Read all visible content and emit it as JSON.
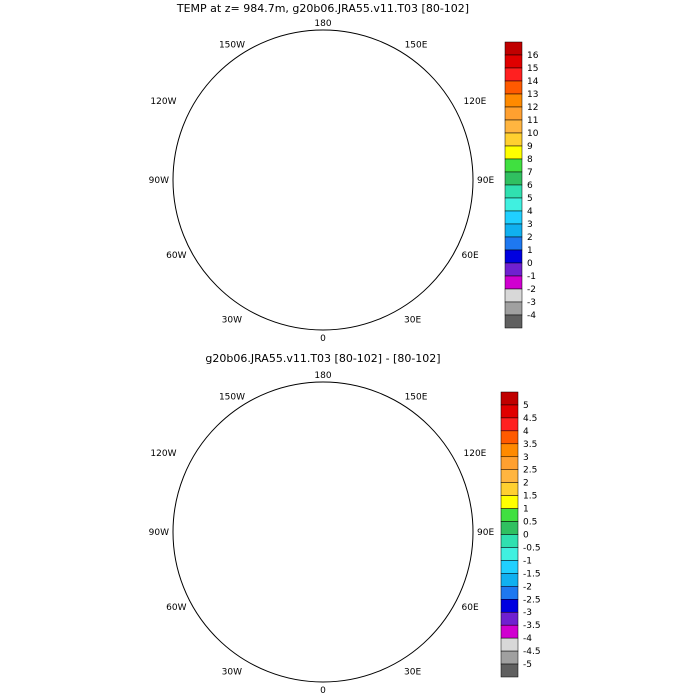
{
  "panels": [
    {
      "title": "TEMP at z= 984.7m, g20b06.JRA55.v11.T03 [80-102]",
      "lon_labels": {
        "top": "180",
        "upper_left": "150W",
        "upper_right": "150E",
        "left_upper": "120W",
        "right_upper": "120E",
        "left": "90W",
        "right": "90E",
        "left_lower": "60W",
        "right_lower": "60E",
        "lower_left": "30W",
        "lower_right": "30E",
        "bottom": "0"
      },
      "colorbar": {
        "labels": [
          "16",
          "15",
          "14",
          "13",
          "12",
          "11",
          "10",
          "9",
          "8",
          "7",
          "6",
          "5",
          "4",
          "3",
          "2",
          "1",
          "0",
          "-1",
          "-2",
          "-3",
          "-4"
        ],
        "colors": [
          "#c00000",
          "#e00000",
          "#ff2020",
          "#ff5a00",
          "#ff8a00",
          "#ffa030",
          "#ffb540",
          "#ffd030",
          "#ffff00",
          "#40e040",
          "#30c060",
          "#30e0b0",
          "#40f0e0",
          "#20d0ff",
          "#10b0f0",
          "#1e78f0",
          "#0000e0",
          "#7020d0",
          "#d000d0",
          "#d8d8d8",
          "#a0a0a0",
          "#606060"
        ]
      }
    },
    {
      "title": "g20b06.JRA55.v11.T03 [80-102] -  [80-102]",
      "lon_labels": {
        "top": "180",
        "upper_left": "150W",
        "upper_right": "150E",
        "left_upper": "120W",
        "right_upper": "120E",
        "left": "90W",
        "right": "90E",
        "left_lower": "60W",
        "right_lower": "60E",
        "lower_left": "30W",
        "lower_right": "30E",
        "bottom": "0"
      },
      "colorbar": {
        "labels": [
          "5",
          "4.5",
          "4",
          "3.5",
          "3",
          "2.5",
          "2",
          "1.5",
          "1",
          "0.5",
          "0",
          "-0.5",
          "-1",
          "-1.5",
          "-2",
          "-2.5",
          "-3",
          "-3.5",
          "-4",
          "-4.5",
          "-5"
        ],
        "colors": [
          "#c00000",
          "#e00000",
          "#ff2020",
          "#ff5a00",
          "#ff8a00",
          "#ffa030",
          "#ffb540",
          "#ffd030",
          "#ffff00",
          "#40e040",
          "#30c060",
          "#30e0b0",
          "#40f0e0",
          "#20d0ff",
          "#10b0f0",
          "#1e78f0",
          "#0000e0",
          "#7020d0",
          "#d000d0",
          "#d8d8d8",
          "#a0a0a0",
          "#606060"
        ]
      }
    }
  ],
  "colors": {
    "coast": "#000000",
    "grid": "#000000",
    "p1_main": "#1e78f0",
    "p1_low": "#0000e0",
    "p1_warm": "#40f0e0",
    "p1_green": "#30c060",
    "p2_main": "#30e0b0",
    "p2_cyan": "#40f0e0",
    "p2_blue": "#20d0ff",
    "p2_dark": "#1e78f0",
    "p2_green": "#40e040"
  }
}
